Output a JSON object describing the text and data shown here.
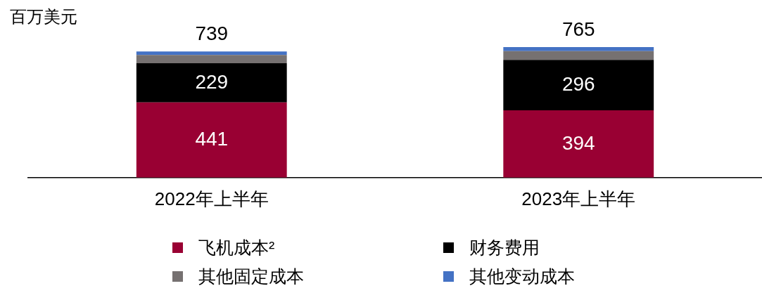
{
  "chart_data": {
    "type": "bar",
    "stacked": true,
    "ylabel": "百万美元",
    "categories": [
      "2022年上半年",
      "2023年上半年"
    ],
    "legend": "bottom",
    "totals": [
      "739",
      "765"
    ],
    "series": [
      {
        "name": "飞机成本²",
        "color": "#990033",
        "values": [
          441,
          394
        ],
        "value_labels": [
          "441",
          "394"
        ]
      },
      {
        "name": "财务费用",
        "color": "#000000",
        "values": [
          229,
          296
        ],
        "value_labels": [
          "229",
          "296"
        ]
      },
      {
        "name": "其他固定成本",
        "color": "#767171",
        "values": [
          48,
          51
        ]
      },
      {
        "name": "其他变动成本",
        "color": "#4472c4",
        "values": [
          21,
          24
        ]
      }
    ]
  }
}
